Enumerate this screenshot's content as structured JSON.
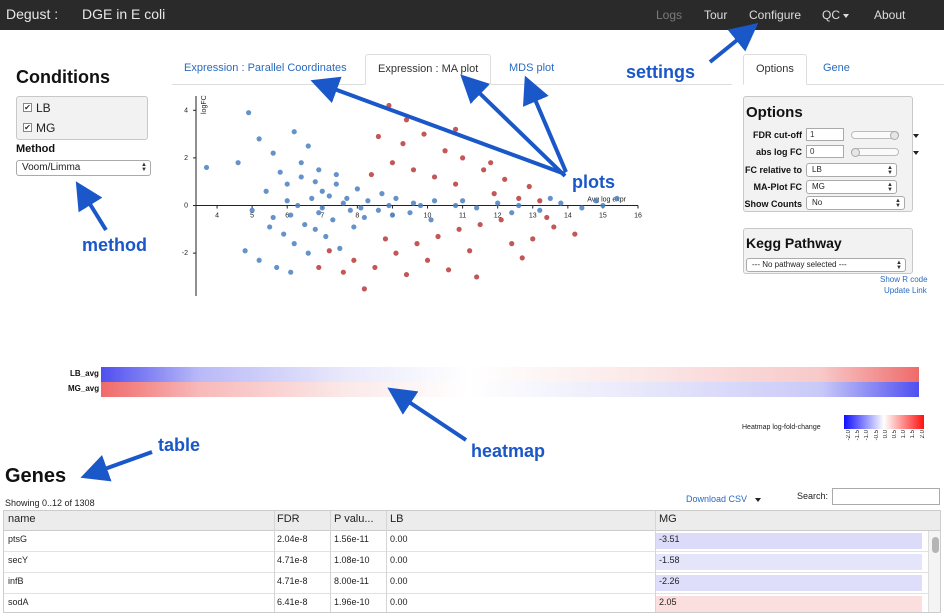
{
  "navbar": {
    "brand": "Degust :",
    "title": "DGE in E coli",
    "items": [
      {
        "label": "Logs",
        "disabled": true
      },
      {
        "label": "Tour"
      },
      {
        "label": "Configure"
      },
      {
        "label": "QC"
      },
      {
        "label": "About"
      }
    ]
  },
  "conditions": {
    "title": "Conditions",
    "items": [
      {
        "label": "LB",
        "checked": true
      },
      {
        "label": "MG",
        "checked": true
      }
    ],
    "method_label": "Method",
    "method_value": "Voom/Limma"
  },
  "tabs": {
    "plot_tabs": [
      "Expression : Parallel Coordinates",
      "Expression : MA plot",
      "MDS plot"
    ],
    "active_plot_tab": "Expression : MA plot",
    "side_tabs": [
      "Options",
      "Gene"
    ],
    "active_side_tab": "Options"
  },
  "options": {
    "title": "Options",
    "fdr_label": "FDR cut-off",
    "fdr_value": "1",
    "abslogfc_label": "abs log FC",
    "abslogfc_value": "0",
    "fc_relative_label": "FC relative to",
    "fc_relative_value": "LB",
    "ma_plot_label": "MA-Plot FC",
    "ma_plot_value": "MG",
    "show_counts_label": "Show Counts",
    "show_counts_value": "No"
  },
  "kegg": {
    "title": "Kegg Pathway",
    "select_value": "--- No pathway selected ---",
    "show_r_code": "Show R code",
    "update_link": "Update Link"
  },
  "chart_data": {
    "type": "scatter",
    "title": "",
    "xlabel": "Avg log expr",
    "ylabel": "logFC",
    "xlim": [
      3.4,
      16
    ],
    "ylim": [
      -3.8,
      4.6
    ],
    "x_ticks": [
      "4",
      "5",
      "6",
      "7",
      "8",
      "9",
      "10",
      "11",
      "12",
      "13",
      "14",
      "15",
      "16"
    ],
    "y_ticks": [
      "4",
      "2",
      "0",
      "-2"
    ],
    "series": [
      {
        "color": "#4a7fbf",
        "points": [
          [
            4.9,
            3.9
          ],
          [
            5.2,
            2.8
          ],
          [
            5.6,
            2.2
          ],
          [
            5.8,
            1.4
          ],
          [
            6.2,
            3.1
          ],
          [
            6.6,
            2.5
          ],
          [
            6.0,
            0.9
          ],
          [
            6.4,
            1.2
          ],
          [
            6.8,
            1.0
          ],
          [
            7.0,
            0.6
          ],
          [
            7.2,
            0.4
          ],
          [
            7.4,
            0.9
          ],
          [
            7.7,
            0.3
          ],
          [
            8.0,
            0.7
          ],
          [
            8.3,
            0.2
          ],
          [
            8.7,
            0.5
          ],
          [
            9.1,
            0.3
          ],
          [
            9.6,
            0.1
          ],
          [
            10.2,
            0.2
          ],
          [
            10.8,
            0.0
          ],
          [
            11.4,
            -0.1
          ],
          [
            12.0,
            0.1
          ],
          [
            12.6,
            0.0
          ],
          [
            13.2,
            -0.2
          ],
          [
            13.8,
            0.1
          ],
          [
            14.4,
            -0.1
          ],
          [
            15.0,
            0.0
          ],
          [
            6.1,
            -0.4
          ],
          [
            6.5,
            -0.8
          ],
          [
            6.9,
            -0.3
          ],
          [
            7.3,
            -0.6
          ],
          [
            7.8,
            -0.2
          ],
          [
            8.2,
            -0.5
          ],
          [
            8.6,
            -0.2
          ],
          [
            9.0,
            -0.4
          ],
          [
            9.5,
            -0.3
          ],
          [
            10.1,
            -0.6
          ],
          [
            5.5,
            -0.9
          ],
          [
            5.2,
            -2.3
          ],
          [
            5.7,
            -2.6
          ],
          [
            6.2,
            -1.6
          ],
          [
            6.6,
            -2.0
          ],
          [
            7.1,
            -1.3
          ],
          [
            7.5,
            -1.8
          ],
          [
            5.0,
            -0.2
          ],
          [
            4.6,
            1.8
          ],
          [
            3.7,
            1.6
          ],
          [
            6.0,
            0.2
          ],
          [
            6.3,
            0.0
          ],
          [
            6.7,
            0.3
          ],
          [
            7.0,
            -0.1
          ],
          [
            7.6,
            0.1
          ],
          [
            8.1,
            -0.1
          ],
          [
            8.9,
            0.0
          ],
          [
            9.8,
            0.0
          ],
          [
            11.0,
            0.2
          ],
          [
            12.4,
            -0.3
          ],
          [
            13.5,
            0.3
          ],
          [
            14.8,
            0.2
          ],
          [
            15.4,
            0.3
          ],
          [
            6.4,
            1.8
          ],
          [
            6.9,
            1.5
          ],
          [
            7.4,
            1.3
          ],
          [
            5.9,
            -1.2
          ],
          [
            6.8,
            -1.0
          ],
          [
            5.4,
            0.6
          ],
          [
            5.6,
            -0.5
          ],
          [
            6.1,
            -2.8
          ],
          [
            4.8,
            -1.9
          ],
          [
            7.9,
            -0.9
          ]
        ]
      },
      {
        "color": "#b93a3a",
        "points": [
          [
            8.6,
            2.9
          ],
          [
            9.3,
            2.6
          ],
          [
            9.9,
            3.0
          ],
          [
            10.5,
            2.3
          ],
          [
            11.0,
            2.0
          ],
          [
            11.6,
            1.5
          ],
          [
            12.2,
            1.1
          ],
          [
            9.0,
            1.8
          ],
          [
            9.6,
            1.5
          ],
          [
            10.2,
            1.2
          ],
          [
            10.8,
            0.9
          ],
          [
            8.4,
            1.3
          ],
          [
            11.9,
            0.5
          ],
          [
            12.6,
            0.3
          ],
          [
            13.2,
            0.2
          ],
          [
            9.4,
            3.6
          ],
          [
            10.8,
            3.2
          ],
          [
            8.9,
            4.2
          ],
          [
            7.2,
            -1.9
          ],
          [
            7.9,
            -2.3
          ],
          [
            8.5,
            -2.6
          ],
          [
            9.1,
            -2.0
          ],
          [
            9.7,
            -1.6
          ],
          [
            10.3,
            -1.3
          ],
          [
            10.9,
            -1.0
          ],
          [
            11.5,
            -0.8
          ],
          [
            12.1,
            -0.6
          ],
          [
            8.2,
            -3.5
          ],
          [
            9.4,
            -2.9
          ],
          [
            10.0,
            -2.3
          ],
          [
            11.2,
            -1.9
          ],
          [
            12.4,
            -1.6
          ],
          [
            13.6,
            -0.9
          ],
          [
            14.2,
            -1.2
          ],
          [
            11.4,
            -3.0
          ],
          [
            12.7,
            -2.2
          ],
          [
            6.9,
            -2.6
          ],
          [
            7.6,
            -2.8
          ],
          [
            8.8,
            -1.4
          ],
          [
            10.6,
            -2.7
          ],
          [
            13.0,
            -1.4
          ],
          [
            11.8,
            1.8
          ],
          [
            12.9,
            0.8
          ],
          [
            13.4,
            -0.5
          ]
        ]
      }
    ]
  },
  "heatmap": {
    "rows": [
      "LB_avg",
      "MG_avg"
    ],
    "legend_title": "Heatmap log-fold-change",
    "legend_ticks": [
      "-2.0",
      "-1.5",
      "-1.0",
      "-0.5",
      "0.0",
      "0.5",
      "1.0",
      "1.5",
      "2.0"
    ]
  },
  "genes": {
    "title": "Genes",
    "showing": "Showing 0..12 of 1308",
    "download": "Download CSV",
    "search_label": "Search:",
    "search_value": "",
    "columns": [
      "name",
      "FDR",
      "P valu...",
      "LB",
      "MG"
    ],
    "rows": [
      {
        "name": "ptsG",
        "fdr": "2.04e-8",
        "p": "1.56e-11",
        "lb": "0.00",
        "mg": "-3.51",
        "mg_color": "#dcdcfa"
      },
      {
        "name": "secY",
        "fdr": "4.71e-8",
        "p": "1.08e-10",
        "lb": "0.00",
        "mg": "-1.58",
        "mg_color": "#e4e4fb"
      },
      {
        "name": "infB",
        "fdr": "4.71e-8",
        "p": "8.00e-11",
        "lb": "0.00",
        "mg": "-2.26",
        "mg_color": "#dedefa"
      },
      {
        "name": "sodA",
        "fdr": "6.41e-8",
        "p": "1.96e-10",
        "lb": "0.00",
        "mg": "2.05",
        "mg_color": "#fbdede"
      }
    ]
  },
  "annotations": {
    "settings": "settings",
    "plots": "plots",
    "method": "method",
    "heatmap": "heatmap",
    "table": "table",
    "color": "#1a57c8"
  }
}
